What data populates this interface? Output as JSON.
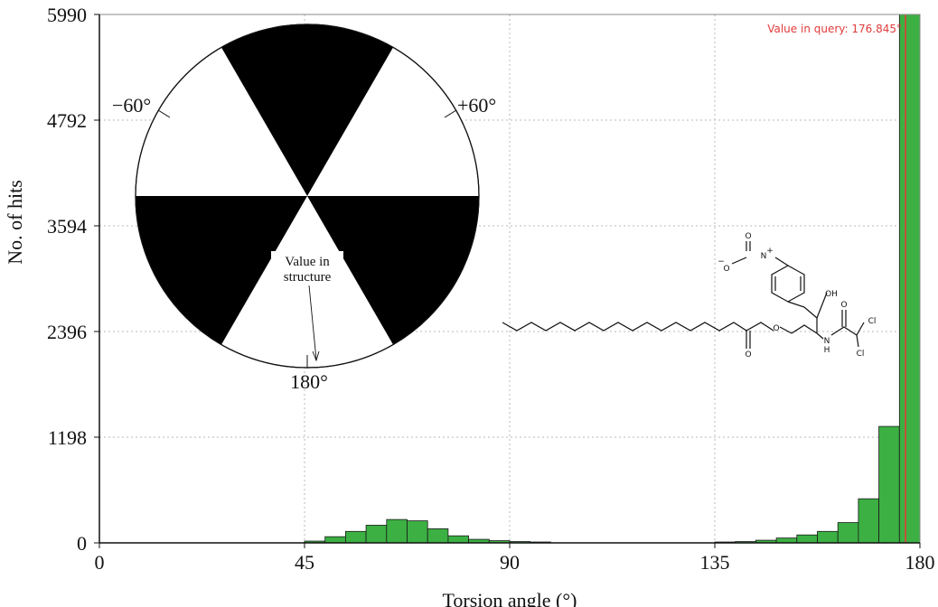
{
  "chart_data": {
    "type": "bar",
    "title": "",
    "xlabel": "Torsion angle (°)",
    "ylabel": "No. of hits",
    "xlim": [
      0,
      180
    ],
    "ylim": [
      0,
      5990
    ],
    "xticks": [
      0,
      45,
      90,
      135,
      180
    ],
    "yticks": [
      0,
      1198,
      2396,
      3594,
      4792,
      5990
    ],
    "grid": true,
    "bin_width": 4.5,
    "bars": [
      {
        "x0": 45.0,
        "value": 20
      },
      {
        "x0": 49.5,
        "value": 70
      },
      {
        "x0": 54.0,
        "value": 130
      },
      {
        "x0": 58.5,
        "value": 200
      },
      {
        "x0": 63.0,
        "value": 265
      },
      {
        "x0": 67.5,
        "value": 250
      },
      {
        "x0": 72.0,
        "value": 160
      },
      {
        "x0": 76.5,
        "value": 80
      },
      {
        "x0": 81.0,
        "value": 40
      },
      {
        "x0": 85.5,
        "value": 25
      },
      {
        "x0": 90.0,
        "value": 15
      },
      {
        "x0": 94.5,
        "value": 10
      },
      {
        "x0": 135.0,
        "value": 10
      },
      {
        "x0": 139.5,
        "value": 15
      },
      {
        "x0": 144.0,
        "value": 30
      },
      {
        "x0": 148.5,
        "value": 55
      },
      {
        "x0": 153.0,
        "value": 90
      },
      {
        "x0": 157.5,
        "value": 130
      },
      {
        "x0": 162.0,
        "value": 230
      },
      {
        "x0": 166.5,
        "value": 500
      },
      {
        "x0": 171.0,
        "value": 1320
      },
      {
        "x0": 175.5,
        "value": 5990
      }
    ],
    "query_value": 176.845,
    "query_label": "Value in query: 176.845°",
    "query_color": "#e23b3b",
    "bar_color": "#3cb043",
    "inset_dial": {
      "labels": {
        "minus60": "−60°",
        "plus60": "+60°",
        "bottom": "180°"
      },
      "note_line1": "Value in",
      "note_line2": "structure"
    },
    "molecule_labels": {
      "oh": "OH",
      "nh": "N",
      "nh_h": "H",
      "o_ester": "O",
      "o_carbonyl1": "O",
      "o_carbonyl2": "O",
      "cl1": "Cl",
      "cl2": "Cl",
      "n_nitro": "N",
      "n_plus": "+",
      "o_nitro1": "O",
      "o_nitro2": "O",
      "o_minus": "−"
    }
  }
}
